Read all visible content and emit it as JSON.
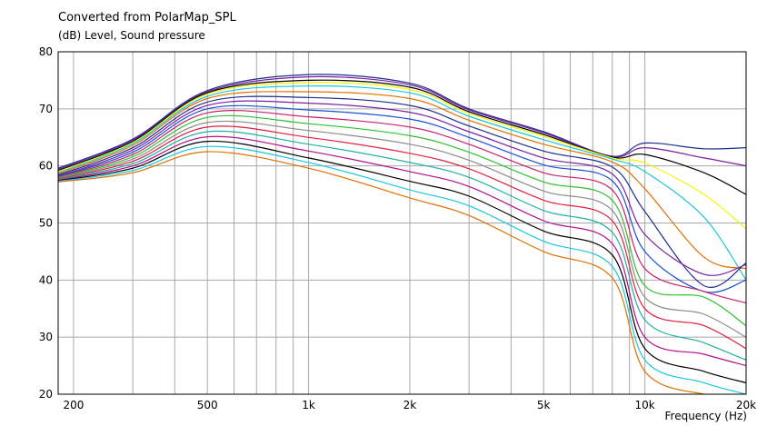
{
  "chart_data": {
    "type": "line",
    "title": "Converted from PolarMap_SPL",
    "ylabel": "(dB)  Level, Sound pressure",
    "xlabel": "Frequency  (Hz)",
    "x_scale": "log",
    "xlim": [
      180,
      20000
    ],
    "ylim": [
      20,
      80
    ],
    "grid": true,
    "legend": "none",
    "y_ticks": [
      {
        "value": 20,
        "label": "20"
      },
      {
        "value": 30,
        "label": "30"
      },
      {
        "value": 40,
        "label": "40"
      },
      {
        "value": 50,
        "label": "50"
      },
      {
        "value": 60,
        "label": "60"
      },
      {
        "value": 70,
        "label": "70"
      },
      {
        "value": 80,
        "label": "80"
      }
    ],
    "x_ticks": [
      {
        "value": 200,
        "label": "200"
      },
      {
        "value": 500,
        "label": "500"
      },
      {
        "value": 1000,
        "label": "1k"
      },
      {
        "value": 2000,
        "label": "2k"
      },
      {
        "value": 5000,
        "label": "5k"
      },
      {
        "value": 10000,
        "label": "10k"
      },
      {
        "value": 20000,
        "label": "20k"
      }
    ],
    "x_gridlines": [
      200,
      300,
      400,
      500,
      600,
      700,
      800,
      900,
      1000,
      2000,
      3000,
      4000,
      5000,
      6000,
      7000,
      8000,
      9000,
      10000,
      20000
    ],
    "x": [
      180,
      300,
      500,
      1000,
      2000,
      3000,
      5000,
      8000,
      10000,
      15000,
      20000
    ],
    "series": [
      {
        "color": "#1f2f8f",
        "values": [
          59.6,
          64.7,
          73.2,
          76.0,
          74.5,
          70.0,
          66.0,
          61.7,
          64.0,
          63.0,
          63.2
        ]
      },
      {
        "color": "#7a1fa0",
        "values": [
          59.4,
          64.5,
          73.0,
          75.6,
          74.2,
          69.8,
          65.8,
          61.6,
          63.2,
          61.4,
          60.0
        ]
      },
      {
        "color": "#000000",
        "values": [
          59.2,
          64.3,
          72.8,
          75.0,
          73.8,
          69.5,
          65.5,
          61.5,
          62.0,
          58.8,
          55.0
        ]
      },
      {
        "color": "#f4f400",
        "values": [
          59.0,
          64.1,
          72.6,
          74.6,
          73.4,
          69.2,
          65.2,
          61.4,
          60.5,
          55.0,
          49.0
        ]
      },
      {
        "color": "#18c6e0",
        "values": [
          58.8,
          63.9,
          72.2,
          74.0,
          72.8,
          68.7,
          64.6,
          61.2,
          59.0,
          51.0,
          40.0
        ]
      },
      {
        "color": "#e07000",
        "values": [
          58.6,
          63.6,
          71.8,
          73.0,
          71.8,
          68.0,
          63.8,
          60.7,
          56.0,
          44.0,
          42.0
        ]
      },
      {
        "color": "#1f2f8f",
        "values": [
          58.4,
          63.2,
          71.2,
          72.0,
          70.6,
          67.0,
          62.6,
          59.8,
          52.0,
          39.0,
          43.0
        ]
      },
      {
        "color": "#7a1fa0",
        "values": [
          58.2,
          62.8,
          70.6,
          71.0,
          69.4,
          66.0,
          61.4,
          58.6,
          48.0,
          41.0,
          42.7
        ]
      },
      {
        "color": "#1a50d0",
        "values": [
          58.1,
          62.4,
          70.0,
          69.8,
          68.2,
          65.0,
          60.2,
          57.4,
          45.0,
          38.0,
          40.0
        ]
      },
      {
        "color": "#c82070",
        "values": [
          58.0,
          62.0,
          69.3,
          68.6,
          66.8,
          63.8,
          58.8,
          55.8,
          42.0,
          38.0,
          36.0
        ]
      },
      {
        "color": "#30c030",
        "values": [
          57.9,
          61.6,
          68.5,
          67.4,
          65.3,
          62.4,
          57.2,
          54.0,
          39.0,
          37.0,
          32.0
        ]
      },
      {
        "color": "#8a8a8a",
        "values": [
          57.8,
          61.2,
          67.6,
          66.2,
          63.8,
          61.0,
          55.6,
          52.2,
          37.0,
          34.0,
          30.0
        ]
      },
      {
        "color": "#e02040",
        "values": [
          57.7,
          60.8,
          66.8,
          65.0,
          62.2,
          59.5,
          54.0,
          50.4,
          35.0,
          32.0,
          28.0
        ]
      },
      {
        "color": "#20b0a0",
        "values": [
          57.6,
          60.4,
          66.0,
          63.8,
          60.6,
          58.0,
          52.2,
          48.4,
          33.0,
          29.0,
          26.0
        ]
      },
      {
        "color": "#b01090",
        "values": [
          57.5,
          60.0,
          65.1,
          62.6,
          59.0,
          56.4,
          50.4,
          46.4,
          30.0,
          27.0,
          25.0
        ]
      },
      {
        "color": "#000000",
        "values": [
          57.4,
          59.6,
          64.3,
          61.4,
          57.3,
          54.7,
          48.6,
          44.4,
          28.0,
          24.0,
          22.0
        ]
      },
      {
        "color": "#18c6e0",
        "values": [
          57.3,
          59.2,
          63.4,
          60.6,
          55.8,
          53.0,
          46.8,
          42.4,
          26.0,
          22.0,
          20.0
        ]
      },
      {
        "color": "#e07000",
        "values": [
          57.2,
          58.8,
          62.5,
          59.6,
          54.4,
          51.3,
          45.0,
          40.4,
          24.0,
          20.0,
          20.0
        ]
      }
    ]
  }
}
